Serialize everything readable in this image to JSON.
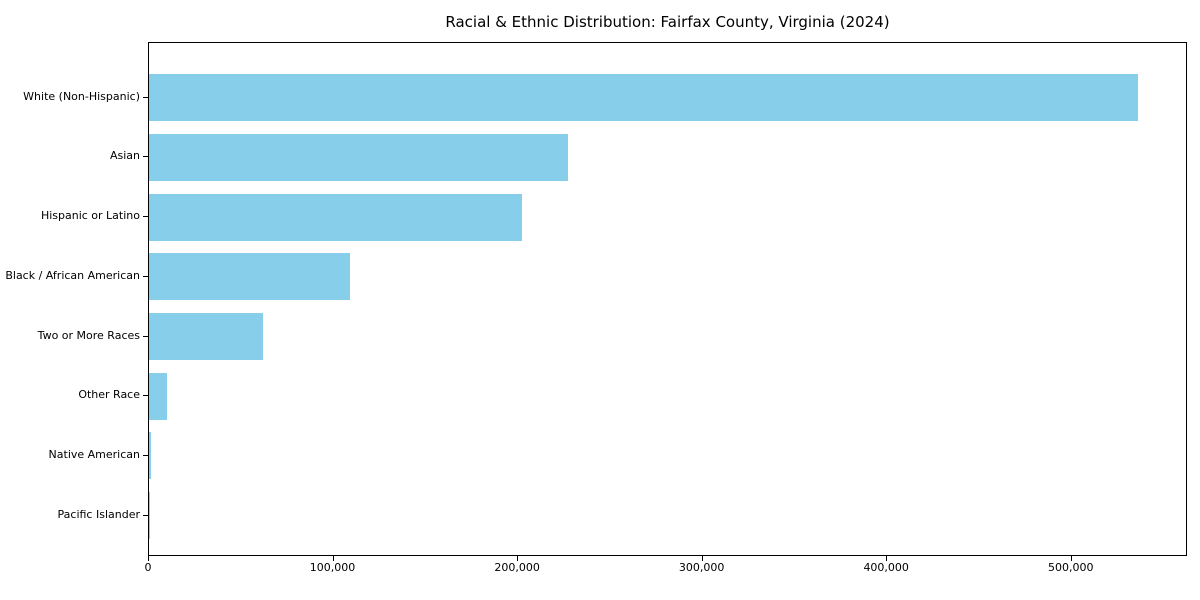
{
  "chart_data": {
    "type": "bar",
    "orientation": "horizontal",
    "title": "Racial & Ethnic Distribution: Fairfax County, Virginia (2024)",
    "xlabel": "",
    "ylabel": "",
    "categories": [
      "White (Non-Hispanic)",
      "Asian",
      "Hispanic or Latino",
      "Black / African American",
      "Two or More Races",
      "Other Race",
      "Native American",
      "Pacific Islander"
    ],
    "values": [
      536000,
      227000,
      202000,
      109000,
      62000,
      9500,
      1000,
      400
    ],
    "xlim": [
      0,
      563000
    ],
    "x_ticks": [
      0,
      100000,
      200000,
      300000,
      400000,
      500000
    ],
    "x_tick_labels": [
      "0",
      "100,000",
      "200,000",
      "300,000",
      "400,000",
      "500,000"
    ],
    "bar_color": "#87CEEB",
    "text_color": "#000000",
    "grid": false,
    "legend": null
  }
}
